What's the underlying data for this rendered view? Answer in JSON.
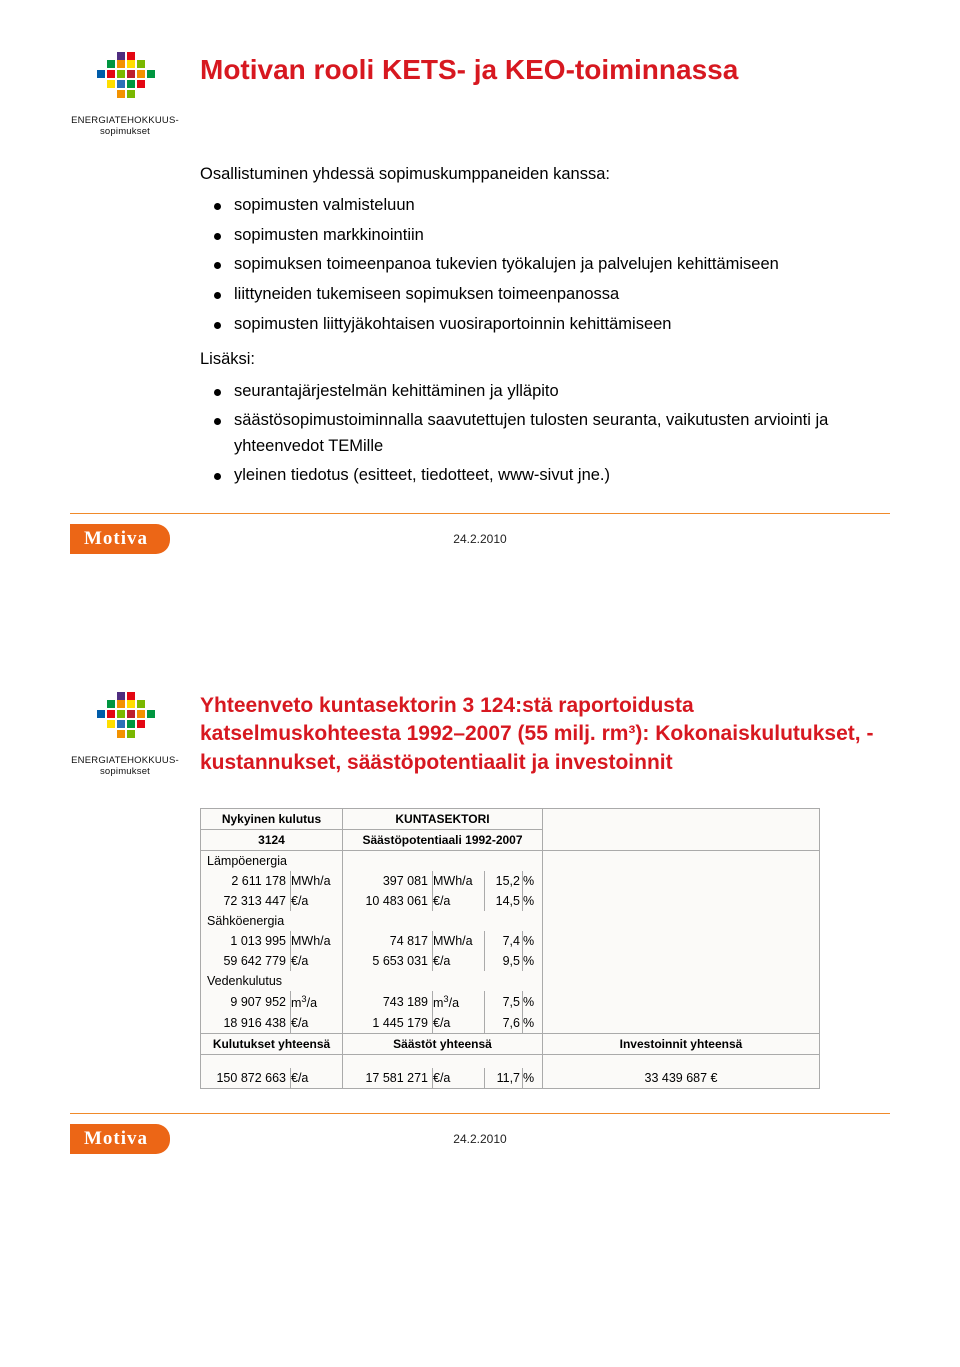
{
  "brand": {
    "logo_caption_line1": "ENERGIATEHOKKUUS-",
    "logo_caption_line2": "sopimukset",
    "motiva_label": "Motiva",
    "colors": {
      "title_red": "#d71820",
      "rule_orange": "#f08a2a",
      "badge_orange": "#ec6616"
    },
    "logo_colors": [
      "#e30613",
      "#f39200",
      "#ffde00",
      "#009640",
      "#2a70b8",
      "#4f2d7f",
      "#be1e2d",
      "#7ab800",
      "#005ca9"
    ]
  },
  "slide1": {
    "title": "Motivan rooli KETS- ja KEO-toiminnassa",
    "intro": "Osallistuminen yhdessä sopimuskumppaneiden kanssa:",
    "list1": [
      "sopimusten valmisteluun",
      "sopimusten markkinointiin",
      "sopimuksen toimeenpanoa tukevien työkalujen ja palvelujen kehittämiseen",
      "liittyneiden tukemiseen sopimuksen toimeenpanossa",
      "sopimusten liittyjäkohtaisen vuosiraportoinnin kehittämiseen"
    ],
    "mid": "Lisäksi:",
    "list2": [
      "seurantajärjestelmän kehittäminen ja ylläpito",
      "säästösopimustoiminnalla saavutettujen tulosten seuranta, vaikutusten arviointi ja yhteenvedot TEMille",
      "yleinen tiedotus (esitteet, tiedotteet, www-sivut jne.)"
    ],
    "date": "24.2.2010"
  },
  "slide2": {
    "title": "Yhteenveto kuntasektorin 3 124:stä raportoidusta katselmuskohteesta 1992–2007 (55 milj. rm³): Kokonaiskulutukset, -kustannukset, säästöpotentiaalit ja investoinnit",
    "date": "24.2.2010",
    "table": {
      "header_left_1": "Nykyinen kulutus",
      "header_left_2": "3124",
      "header_center_1": "KUNTASEKTORI",
      "header_center_2": "Säästöpotentiaali 1992-2007",
      "categories": [
        {
          "name": "Lämpöenergia",
          "rows": [
            {
              "val": "2 611 178",
              "unit": "MWh/a",
              "sav": "397 081",
              "sunit": "MWh/a",
              "pct": "15,2",
              "pu": "%"
            },
            {
              "val": "72 313 447",
              "unit": "€/a",
              "sav": "10 483 061",
              "sunit": "€/a",
              "pct": "14,5",
              "pu": "%"
            }
          ]
        },
        {
          "name": "Sähköenergia",
          "rows": [
            {
              "val": "1 013 995",
              "unit": "MWh/a",
              "sav": "74 817",
              "sunit": "MWh/a",
              "pct": "7,4",
              "pu": "%"
            },
            {
              "val": "59 642 779",
              "unit": "€/a",
              "sav": "5 653 031",
              "sunit": "€/a",
              "pct": "9,5",
              "pu": "%"
            }
          ]
        },
        {
          "name": "Vedenkulutus",
          "rows": [
            {
              "val": "9 907 952",
              "unit": "m³/a",
              "sav": "743 189",
              "sunit": "m³/a",
              "pct": "7,5",
              "pu": "%"
            },
            {
              "val": "18 916 438",
              "unit": "€/a",
              "sav": "1 445 179",
              "sunit": "€/a",
              "pct": "7,6",
              "pu": "%"
            }
          ]
        }
      ],
      "summary_labels": {
        "left": "Kulutukset yhteensä",
        "center": "Säästöt yhteensä",
        "right": "Investoinnit yhteensä"
      },
      "totals": {
        "val": "150 872 663",
        "unit": "€/a",
        "sav": "17 581 271",
        "sunit": "€/a",
        "pct": "11,7",
        "pu": "%",
        "inv": "33 439 687 €"
      }
    }
  }
}
